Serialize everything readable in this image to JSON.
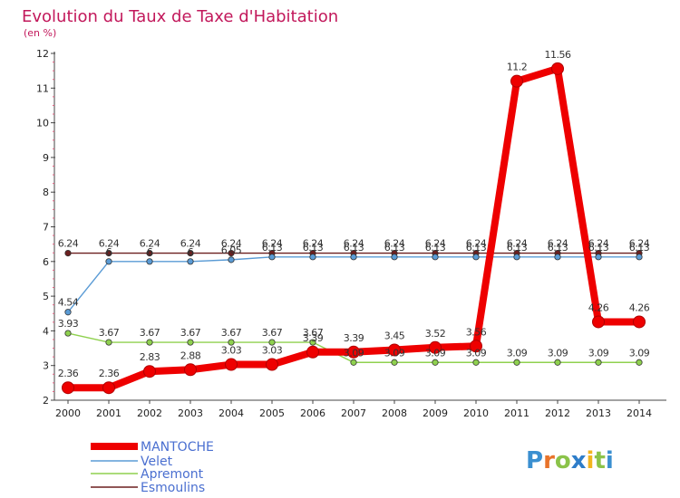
{
  "header": {
    "title": "Evolution du Taux de Taxe d'Habitation",
    "subtitle": "(en %)"
  },
  "brand": {
    "letters": [
      "P",
      "r",
      "o",
      "x",
      "i",
      "t",
      "i"
    ],
    "colors": [
      "#3a8fd0",
      "#e8732a",
      "#8bc34a",
      "#2e7dc9",
      "#f2b51f",
      "#8bc34a",
      "#3a8fd0"
    ]
  },
  "chart_data": {
    "type": "line",
    "title": "Evolution du Taux de Taxe d'Habitation",
    "ylabel": "(en %)",
    "xlabel": "",
    "x": [
      "2000",
      "2001",
      "2002",
      "2003",
      "2004",
      "2005",
      "2006",
      "2007",
      "2008",
      "2009",
      "2010",
      "2011",
      "2012",
      "2013",
      "2014"
    ],
    "yticks": [
      "2",
      "3",
      "4",
      "5",
      "6",
      "7",
      "8",
      "9",
      "10",
      "11",
      "12"
    ],
    "ylim": [
      2,
      12
    ],
    "grid": false,
    "legend_placement": "bottom-left",
    "series": [
      {
        "name": "MANTOCHE",
        "color": "#ee0000",
        "values": [
          2.36,
          2.36,
          2.83,
          2.88,
          3.03,
          3.03,
          3.39,
          3.39,
          3.45,
          3.52,
          3.56,
          11.2,
          11.56,
          4.26,
          4.26
        ],
        "labels": [
          "2.36",
          "2.36",
          "2.83",
          "2.88",
          "3.03",
          "3.03",
          "3.39",
          "3.39",
          "3.45",
          "3.52",
          "3.56",
          "11.2",
          "11.56",
          "4.26",
          "4.26"
        ]
      },
      {
        "name": "Velet",
        "color": "#5a9bd5",
        "values": [
          4.54,
          6.0,
          6.0,
          6.0,
          6.05,
          6.13,
          6.13,
          6.13,
          6.13,
          6.13,
          6.13,
          6.13,
          6.13,
          6.13,
          6.13
        ],
        "labels": [
          "4.54",
          "6",
          "6",
          "6",
          "6.05",
          "6.13",
          "6.13",
          "6.13",
          "6.13",
          "6.13",
          "6.13",
          "6.13",
          "6.13",
          "6.13",
          "6.13"
        ]
      },
      {
        "name": "Apremont",
        "color": "#8fd14f",
        "values": [
          3.93,
          3.67,
          3.67,
          3.67,
          3.67,
          3.67,
          3.67,
          3.09,
          3.09,
          3.09,
          3.09,
          3.09,
          3.09,
          3.09,
          3.09
        ],
        "labels": [
          "3.93",
          "3.67",
          "3.67",
          "3.67",
          "3.67",
          "3.67",
          "3.67",
          "3.09",
          "3.09",
          "3.09",
          "3.09",
          "3.09",
          "3.09",
          "3.09",
          "3.09"
        ]
      },
      {
        "name": "Esmoulins",
        "color": "#6b1f1f",
        "values": [
          6.24,
          6.24,
          6.24,
          6.24,
          6.24,
          6.24,
          6.24,
          6.24,
          6.24,
          6.24,
          6.24,
          6.24,
          6.24,
          6.24,
          6.24
        ],
        "labels": [
          "6.24",
          "6.24",
          "6.24",
          "6.24",
          "6.24",
          "6.24",
          "6.24",
          "6.24",
          "6.24",
          "6.24",
          "6.24",
          "6.24",
          "6.24",
          "6.24",
          "6.24"
        ]
      }
    ]
  }
}
